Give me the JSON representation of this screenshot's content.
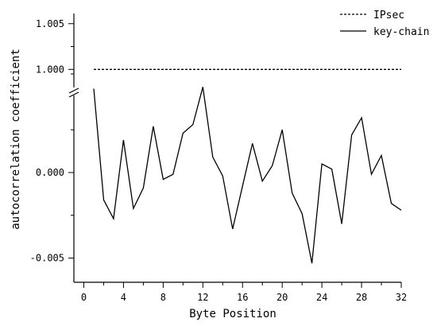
{
  "chart_data": {
    "type": "line",
    "title": "",
    "xlabel": "Byte Position",
    "ylabel": "autocorrelation coefficient",
    "xlim": [
      -1,
      32
    ],
    "x_ticks": [
      0,
      4,
      8,
      12,
      16,
      20,
      24,
      28,
      32
    ],
    "y_ticks": [
      {
        "value": -0.005,
        "label": "-0.005"
      },
      {
        "value": 0.0,
        "label": "0.000"
      },
      {
        "value": 1.0,
        "label": "1.000"
      },
      {
        "value": 1.005,
        "label": "1.005"
      }
    ],
    "broken_y_axis": {
      "lower_range": [
        -0.0059,
        0.0046
      ],
      "upper_range": [
        0.9982,
        1.0055
      ]
    },
    "legend": {
      "position": "top-right"
    },
    "series": [
      {
        "name": "IPsec",
        "style": "dashed",
        "color": "#000000",
        "x": [
          1,
          32
        ],
        "y": [
          1.0,
          1.0
        ]
      },
      {
        "name": "key-chain",
        "style": "solid",
        "color": "#000000",
        "x": [
          1,
          2,
          3,
          4,
          5,
          6,
          7,
          8,
          9,
          10,
          11,
          12,
          13,
          14,
          15,
          16,
          17,
          18,
          19,
          20,
          21,
          22,
          23,
          24,
          25,
          26,
          27,
          28,
          29,
          30,
          31,
          32
        ],
        "y": [
          0.0049,
          -0.0016,
          -0.0027,
          0.0019,
          -0.0021,
          -0.0009,
          0.0027,
          -0.0004,
          -0.0001,
          0.0023,
          0.0028,
          0.005,
          0.0009,
          -0.0002,
          -0.0033,
          -0.0008,
          0.0017,
          -0.0005,
          0.0004,
          0.0025,
          -0.0012,
          -0.0024,
          -0.0053,
          0.0005,
          0.0002,
          -0.003,
          0.0022,
          0.0032,
          -0.0001,
          0.001,
          -0.0018,
          -0.0022
        ]
      }
    ]
  }
}
